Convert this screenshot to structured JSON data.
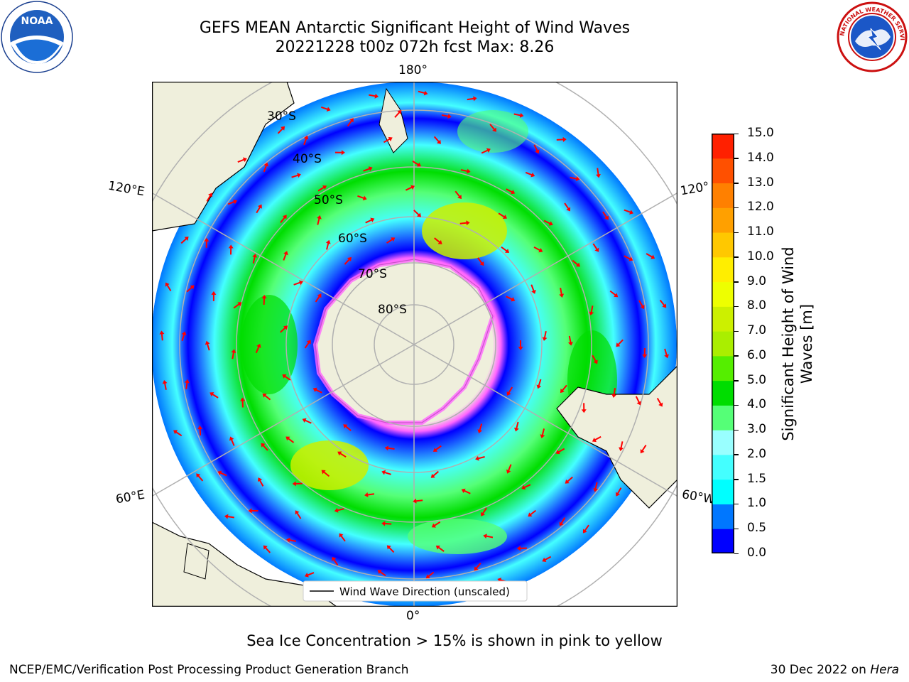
{
  "header": {
    "title_line1": "GEFS MEAN Antarctic Significant Height of Wind Waves",
    "title_line2": "20221228 t00z 072h fcst   Max: 8.26"
  },
  "logos": {
    "noaa": "NOAA",
    "nws_ring_text": "NATIONAL WEATHER SERVICE"
  },
  "map": {
    "projection": "south-polar-stereographic",
    "longitude_labels": {
      "top": "180°",
      "bottom": "0°",
      "upper_left": "120°E",
      "upper_right": "120°",
      "lower_left": "60°E",
      "lower_right": "60°W"
    },
    "latitude_labels": [
      "30°S",
      "40°S",
      "50°S",
      "60°S",
      "70°S",
      "80°S"
    ],
    "legend_label": "Wind Wave Direction (unscaled)",
    "colors": {
      "land": "#efefdc",
      "arrows": "#ff0000",
      "ice_pink": "#ff66ff",
      "ice_yellow": "#ffcc66"
    }
  },
  "colorbar": {
    "label": "Significant Height of Wind Waves [m]",
    "ticks": [
      "0.0",
      "0.5",
      "1.0",
      "1.5",
      "2.0",
      "3.0",
      "4.0",
      "5.0",
      "6.0",
      "7.0",
      "8.0",
      "9.0",
      "10.0",
      "11.0",
      "12.0",
      "13.0",
      "14.0",
      "15.0"
    ],
    "colors": [
      "#0000ff",
      "#0077ff",
      "#00ffff",
      "#44ffff",
      "#99ffff",
      "#55ff77",
      "#00dd00",
      "#55ee00",
      "#aaee00",
      "#ccf000",
      "#eeff00",
      "#ffee00",
      "#ffc800",
      "#ffa000",
      "#ff8000",
      "#ff5000",
      "#ff2000"
    ]
  },
  "footer": {
    "ice_note": "Sea Ice Concentration > 15% is shown in pink to yellow",
    "left": "NCEP/EMC/Verification Post Processing Product Generation Branch",
    "right_date": "30 Dec 2022 on",
    "right_machine": "Hera"
  }
}
